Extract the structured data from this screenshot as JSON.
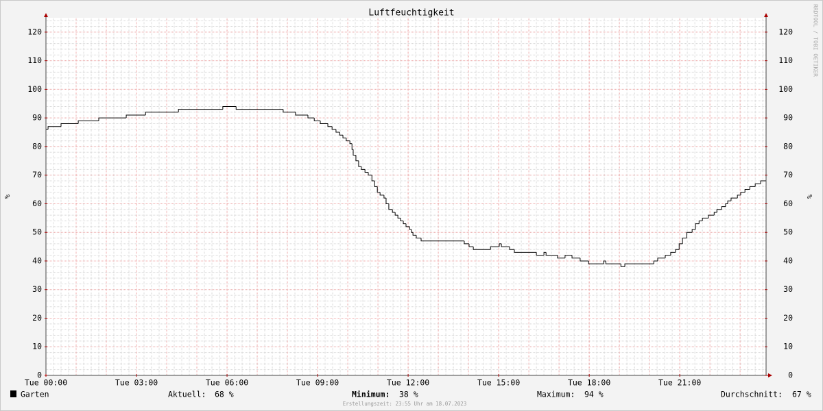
{
  "chart_data": {
    "type": "line",
    "title": "Luftfeuchtigkeit",
    "ylabel": "%",
    "watermark": "RRDTOOL / TOBI OETIKER",
    "x": [
      0,
      0.07,
      0.5,
      1.07,
      1.75,
      2.66,
      3.3,
      4.39,
      5.86,
      6.3,
      7.86,
      8.27,
      8.68,
      8.89,
      9.09,
      9.34,
      9.48,
      9.61,
      9.73,
      9.84,
      9.95,
      10.07,
      10.14,
      10.18,
      10.27,
      10.36,
      10.45,
      10.57,
      10.68,
      10.8,
      10.89,
      10.98,
      11.07,
      11.2,
      11.27,
      11.36,
      11.48,
      11.57,
      11.66,
      11.75,
      11.84,
      11.93,
      12.05,
      12.11,
      12.16,
      12.27,
      12.43,
      13.86,
      14.02,
      14.16,
      14.73,
      15.02,
      15.09,
      15.36,
      15.52,
      16.25,
      16.5,
      16.57,
      16.95,
      17.2,
      17.43,
      17.7,
      17.98,
      18.48,
      18.55,
      19.05,
      19.18,
      20.14,
      20.27,
      20.52,
      20.7,
      20.86,
      20.98,
      21.09,
      21.23,
      21.41,
      21.52,
      21.64,
      21.75,
      21.95,
      22.14,
      22.23,
      22.39,
      22.52,
      22.59,
      22.7,
      22.91,
      23.02,
      23.16,
      23.32,
      23.5,
      23.68
    ],
    "series": [
      {
        "name": "Garten",
        "color": "#000000",
        "values": [
          86,
          87,
          88,
          89,
          90,
          91,
          92,
          93,
          94,
          93,
          92,
          91,
          90,
          89,
          88,
          87,
          86,
          85,
          84,
          83,
          82,
          81,
          79,
          77,
          75,
          73,
          72,
          71,
          70,
          68,
          66,
          64,
          63,
          62,
          60,
          58,
          57,
          56,
          55,
          54,
          53,
          52,
          51,
          50,
          49,
          48,
          47,
          46,
          45,
          44,
          45,
          46,
          45,
          44,
          43,
          42,
          43,
          42,
          41,
          42,
          41,
          40,
          39,
          40,
          39,
          38,
          39,
          40,
          41,
          42,
          43,
          44,
          46,
          48,
          50,
          51,
          53,
          54,
          55,
          56,
          57,
          58,
          59,
          60,
          61,
          62,
          63,
          64,
          65,
          66,
          67,
          68
        ]
      }
    ],
    "xlim": [
      0,
      23.86
    ],
    "ylim": [
      0,
      125
    ],
    "xticks": [
      {
        "value": 0,
        "label": "Tue 00:00"
      },
      {
        "value": 3,
        "label": "Tue 03:00"
      },
      {
        "value": 6,
        "label": "Tue 06:00"
      },
      {
        "value": 9,
        "label": "Tue 09:00"
      },
      {
        "value": 12,
        "label": "Tue 12:00"
      },
      {
        "value": 15,
        "label": "Tue 15:00"
      },
      {
        "value": 18,
        "label": "Tue 18:00"
      },
      {
        "value": 21,
        "label": "Tue 21:00"
      }
    ],
    "yticks": [
      0,
      10,
      20,
      30,
      40,
      50,
      60,
      70,
      80,
      90,
      100,
      110,
      120
    ],
    "x_grid_step": 1,
    "x_minor_step": 0.25,
    "y_minor_step": 2,
    "grid": true,
    "stats": [
      {
        "label": "Aktuell:",
        "value": "68 %"
      },
      {
        "label": "Minimum:",
        "value": "38 %"
      },
      {
        "label": "Maximum:",
        "value": "94 %"
      },
      {
        "label": "Durchschnitt:",
        "value": "67 %"
      }
    ],
    "footer": "Erstellungszeit: 23:55 Uhr am 18.07.2023"
  }
}
